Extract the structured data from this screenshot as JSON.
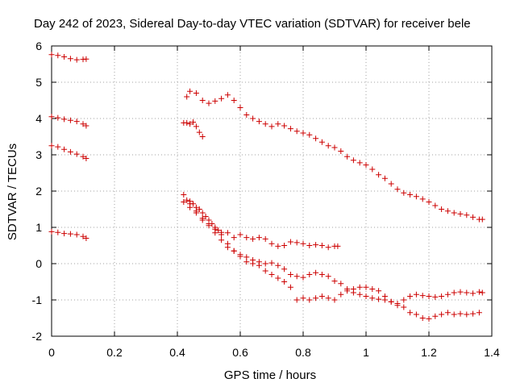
{
  "chart_data": {
    "type": "scatter",
    "title": "Day 242 of 2023, Sidereal Day-to-day VTEC variation (SDTVAR) for receiver bele",
    "xlabel": "GPS time / hours",
    "ylabel": "SDTVAR / TECUs",
    "xlim": [
      0,
      1.4
    ],
    "ylim": [
      -2,
      6
    ],
    "xticks": [
      0,
      0.2,
      0.4,
      0.6,
      0.8,
      1,
      1.2,
      1.4
    ],
    "xtick_labels": [
      "0",
      "0.2",
      "0.4",
      "0.6",
      "0.8",
      "1",
      "1.2",
      "1.4"
    ],
    "yticks": [
      -2,
      -1,
      0,
      1,
      2,
      3,
      4,
      5,
      6
    ],
    "ytick_labels": [
      "-2",
      "-1",
      "0",
      "1",
      "2",
      "3",
      "4",
      "5",
      "6"
    ],
    "grid": true,
    "marker": "+",
    "color": "#cc0000",
    "series": [
      {
        "name": "s1",
        "points": [
          [
            0.0,
            5.76
          ],
          [
            0.02,
            5.74
          ],
          [
            0.04,
            5.7
          ],
          [
            0.06,
            5.65
          ],
          [
            0.08,
            5.62
          ],
          [
            0.1,
            5.63
          ],
          [
            0.11,
            5.64
          ]
        ]
      },
      {
        "name": "s2",
        "points": [
          [
            0.0,
            4.05
          ],
          [
            0.02,
            4.02
          ],
          [
            0.04,
            3.98
          ],
          [
            0.06,
            3.95
          ],
          [
            0.08,
            3.92
          ],
          [
            0.1,
            3.85
          ],
          [
            0.11,
            3.8
          ]
        ]
      },
      {
        "name": "s3",
        "points": [
          [
            0.0,
            3.25
          ],
          [
            0.02,
            3.22
          ],
          [
            0.04,
            3.15
          ],
          [
            0.06,
            3.08
          ],
          [
            0.08,
            3.02
          ],
          [
            0.1,
            2.95
          ],
          [
            0.11,
            2.9
          ]
        ]
      },
      {
        "name": "s4",
        "points": [
          [
            0.0,
            0.88
          ],
          [
            0.02,
            0.86
          ],
          [
            0.04,
            0.83
          ],
          [
            0.06,
            0.82
          ],
          [
            0.08,
            0.8
          ],
          [
            0.1,
            0.75
          ],
          [
            0.11,
            0.7
          ]
        ]
      },
      {
        "name": "s5",
        "points": [
          [
            0.43,
            4.6
          ],
          [
            0.44,
            4.75
          ],
          [
            0.46,
            4.7
          ],
          [
            0.48,
            4.5
          ],
          [
            0.5,
            4.42
          ],
          [
            0.52,
            4.48
          ],
          [
            0.54,
            4.55
          ],
          [
            0.56,
            4.65
          ],
          [
            0.58,
            4.5
          ],
          [
            0.6,
            4.3
          ],
          [
            0.62,
            4.1
          ],
          [
            0.64,
            4.0
          ],
          [
            0.66,
            3.92
          ],
          [
            0.68,
            3.85
          ],
          [
            0.7,
            3.78
          ],
          [
            0.72,
            3.85
          ],
          [
            0.74,
            3.8
          ],
          [
            0.76,
            3.72
          ],
          [
            0.78,
            3.65
          ],
          [
            0.8,
            3.6
          ],
          [
            0.82,
            3.55
          ],
          [
            0.84,
            3.45
          ],
          [
            0.86,
            3.35
          ],
          [
            0.88,
            3.25
          ],
          [
            0.9,
            3.2
          ],
          [
            0.92,
            3.1
          ],
          [
            0.94,
            2.95
          ],
          [
            0.96,
            2.85
          ],
          [
            0.98,
            2.78
          ],
          [
            1.0,
            2.72
          ],
          [
            1.02,
            2.6
          ],
          [
            1.04,
            2.45
          ],
          [
            1.06,
            2.35
          ],
          [
            1.08,
            2.2
          ],
          [
            1.1,
            2.05
          ],
          [
            1.12,
            1.95
          ],
          [
            1.14,
            1.9
          ],
          [
            1.16,
            1.85
          ],
          [
            1.18,
            1.78
          ],
          [
            1.2,
            1.7
          ],
          [
            1.22,
            1.6
          ],
          [
            1.24,
            1.5
          ],
          [
            1.26,
            1.45
          ],
          [
            1.28,
            1.4
          ],
          [
            1.3,
            1.37
          ],
          [
            1.32,
            1.34
          ],
          [
            1.34,
            1.28
          ],
          [
            1.36,
            1.22
          ],
          [
            1.37,
            1.22
          ]
        ]
      },
      {
        "name": "s6",
        "points": [
          [
            0.42,
            3.88
          ],
          [
            0.43,
            3.88
          ],
          [
            0.44,
            3.85
          ],
          [
            0.45,
            3.9
          ],
          [
            0.46,
            3.78
          ],
          [
            0.47,
            3.62
          ],
          [
            0.48,
            3.5
          ]
        ]
      },
      {
        "name": "s7",
        "points": [
          [
            0.42,
            1.9
          ],
          [
            0.43,
            1.75
          ],
          [
            0.44,
            1.72
          ],
          [
            0.45,
            1.65
          ],
          [
            0.46,
            1.55
          ],
          [
            0.47,
            1.5
          ],
          [
            0.48,
            1.4
          ],
          [
            0.49,
            1.3
          ],
          [
            0.5,
            1.2
          ],
          [
            0.51,
            1.1
          ],
          [
            0.52,
            1.0
          ],
          [
            0.53,
            0.92
          ],
          [
            0.54,
            0.86
          ],
          [
            0.56,
            0.85
          ],
          [
            0.58,
            0.72
          ],
          [
            0.6,
            0.8
          ],
          [
            0.62,
            0.72
          ],
          [
            0.64,
            0.68
          ],
          [
            0.66,
            0.72
          ],
          [
            0.68,
            0.68
          ],
          [
            0.7,
            0.55
          ],
          [
            0.72,
            0.48
          ],
          [
            0.74,
            0.5
          ],
          [
            0.76,
            0.6
          ],
          [
            0.78,
            0.58
          ],
          [
            0.8,
            0.55
          ],
          [
            0.82,
            0.5
          ],
          [
            0.84,
            0.52
          ],
          [
            0.86,
            0.5
          ],
          [
            0.88,
            0.45
          ],
          [
            0.9,
            0.48
          ],
          [
            0.91,
            0.48
          ]
        ]
      },
      {
        "name": "s8",
        "points": [
          [
            0.42,
            1.7
          ],
          [
            0.44,
            1.55
          ],
          [
            0.46,
            1.45
          ],
          [
            0.48,
            1.25
          ],
          [
            0.5,
            1.05
          ],
          [
            0.52,
            0.85
          ],
          [
            0.54,
            0.65
          ],
          [
            0.56,
            0.45
          ],
          [
            0.58,
            0.35
          ],
          [
            0.6,
            0.25
          ],
          [
            0.62,
            0.18
          ],
          [
            0.64,
            0.1
          ],
          [
            0.66,
            0.05
          ],
          [
            0.68,
            0.0
          ],
          [
            0.7,
            0.02
          ],
          [
            0.72,
            -0.05
          ],
          [
            0.74,
            -0.15
          ],
          [
            0.76,
            -0.3
          ],
          [
            0.78,
            -0.35
          ],
          [
            0.8,
            -0.38
          ],
          [
            0.82,
            -0.3
          ],
          [
            0.84,
            -0.25
          ],
          [
            0.86,
            -0.3
          ],
          [
            0.88,
            -0.35
          ],
          [
            0.9,
            -0.48
          ],
          [
            0.92,
            -0.55
          ],
          [
            0.94,
            -0.7
          ],
          [
            0.96,
            -0.8
          ],
          [
            0.98,
            -0.85
          ],
          [
            1.0,
            -0.9
          ],
          [
            1.02,
            -0.95
          ],
          [
            1.04,
            -0.98
          ],
          [
            1.06,
            -1.0
          ],
          [
            1.08,
            -1.05
          ],
          [
            1.1,
            -1.1
          ],
          [
            1.12,
            -1.2
          ],
          [
            1.14,
            -1.35
          ],
          [
            1.16,
            -1.4
          ],
          [
            1.18,
            -1.5
          ],
          [
            1.2,
            -1.52
          ],
          [
            1.22,
            -1.45
          ],
          [
            1.24,
            -1.4
          ],
          [
            1.26,
            -1.35
          ],
          [
            1.28,
            -1.4
          ],
          [
            1.3,
            -1.38
          ],
          [
            1.32,
            -1.4
          ],
          [
            1.34,
            -1.38
          ],
          [
            1.36,
            -1.35
          ]
        ]
      },
      {
        "name": "s9",
        "points": [
          [
            0.44,
            1.65
          ],
          [
            0.46,
            1.4
          ],
          [
            0.48,
            1.2
          ],
          [
            0.5,
            1.1
          ],
          [
            0.52,
            0.95
          ],
          [
            0.54,
            0.8
          ],
          [
            0.56,
            0.55
          ],
          [
            0.58,
            0.35
          ],
          [
            0.6,
            0.2
          ],
          [
            0.62,
            0.05
          ],
          [
            0.64,
            0.0
          ],
          [
            0.66,
            -0.05
          ],
          [
            0.68,
            -0.2
          ],
          [
            0.7,
            -0.3
          ],
          [
            0.72,
            -0.4
          ],
          [
            0.74,
            -0.5
          ],
          [
            0.76,
            -0.65
          ],
          [
            0.78,
            -1.0
          ],
          [
            0.8,
            -0.95
          ],
          [
            0.82,
            -1.0
          ],
          [
            0.84,
            -0.95
          ],
          [
            0.86,
            -0.9
          ],
          [
            0.88,
            -0.95
          ],
          [
            0.9,
            -1.0
          ],
          [
            0.92,
            -0.85
          ],
          [
            0.94,
            -0.75
          ],
          [
            0.96,
            -0.7
          ],
          [
            0.98,
            -0.65
          ],
          [
            1.0,
            -0.65
          ],
          [
            1.02,
            -0.7
          ],
          [
            1.04,
            -0.75
          ],
          [
            1.06,
            -0.9
          ],
          [
            1.08,
            -1.05
          ],
          [
            1.1,
            -1.15
          ],
          [
            1.12,
            -1.0
          ],
          [
            1.14,
            -0.9
          ],
          [
            1.16,
            -0.85
          ],
          [
            1.18,
            -0.88
          ],
          [
            1.2,
            -0.9
          ],
          [
            1.22,
            -0.92
          ],
          [
            1.24,
            -0.9
          ],
          [
            1.26,
            -0.85
          ],
          [
            1.28,
            -0.8
          ],
          [
            1.3,
            -0.78
          ],
          [
            1.32,
            -0.8
          ],
          [
            1.34,
            -0.82
          ],
          [
            1.36,
            -0.78
          ],
          [
            1.37,
            -0.8
          ]
        ]
      }
    ]
  }
}
